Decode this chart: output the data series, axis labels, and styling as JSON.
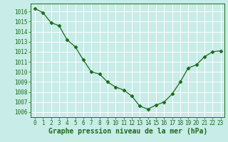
{
  "x": [
    0,
    1,
    2,
    3,
    4,
    5,
    6,
    7,
    8,
    9,
    10,
    11,
    12,
    13,
    14,
    15,
    16,
    17,
    18,
    19,
    20,
    21,
    22,
    23
  ],
  "y": [
    1016.3,
    1015.9,
    1014.9,
    1014.6,
    1013.2,
    1012.5,
    1011.2,
    1010.0,
    1009.8,
    1009.0,
    1008.5,
    1008.2,
    1007.6,
    1006.6,
    1006.3,
    1006.7,
    1007.0,
    1007.8,
    1009.0,
    1010.4,
    1010.7,
    1011.5,
    1012.0,
    1012.1
  ],
  "ylim": [
    1005.5,
    1016.8
  ],
  "yticks": [
    1006,
    1007,
    1008,
    1009,
    1010,
    1011,
    1012,
    1013,
    1014,
    1015,
    1016
  ],
  "xticks": [
    0,
    1,
    2,
    3,
    4,
    5,
    6,
    7,
    8,
    9,
    10,
    11,
    12,
    13,
    14,
    15,
    16,
    17,
    18,
    19,
    20,
    21,
    22,
    23
  ],
  "xlabel": "Graphe pression niveau de la mer (hPa)",
  "line_color": "#1a6b1a",
  "marker": "D",
  "marker_size": 2.5,
  "background_color": "#c8ece8",
  "grid_color": "#ffffff",
  "tick_label_color": "#1a6b1a",
  "xlabel_color": "#1a6b1a",
  "xlabel_fontsize": 7,
  "tick_fontsize": 5.5
}
